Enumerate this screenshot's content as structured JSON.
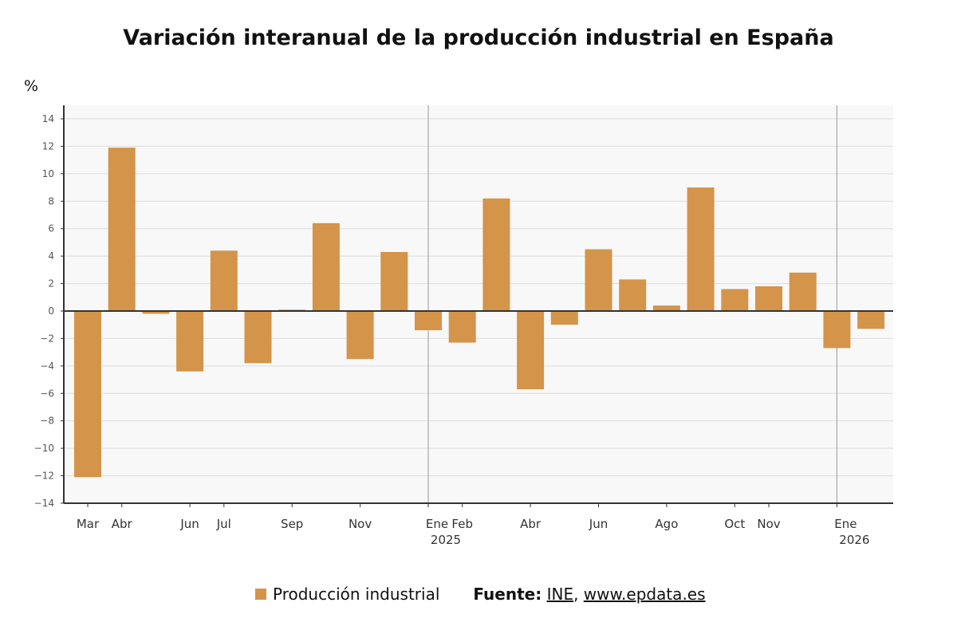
{
  "chart_data": {
    "type": "bar",
    "title": "Variación interanual de la producción industrial en España",
    "ylabel": "%",
    "ylim": [
      -14,
      14
    ],
    "yticks": [
      -14,
      -12,
      -10,
      -8,
      -6,
      -4,
      -2,
      0,
      2,
      4,
      6,
      8,
      10,
      12,
      14
    ],
    "grid": true,
    "legend_placement": "bottom",
    "bar_color": "#d4944a",
    "series": [
      {
        "name": "Producción industrial",
        "values": [
          -12.1,
          11.9,
          -0.2,
          -4.4,
          4.4,
          -3.8,
          0.1,
          6.4,
          -3.5,
          4.3,
          -1.4,
          -2.3,
          8.2,
          -5.7,
          -1.0,
          4.5,
          2.3,
          0.4,
          9.0,
          1.6,
          1.8,
          2.8,
          -2.7,
          -1.3
        ]
      }
    ],
    "x": [
      "2024-03",
      "2024-04",
      "2024-05",
      "2024-06",
      "2024-07",
      "2024-08",
      "2024-09",
      "2024-10",
      "2024-11",
      "2024-12",
      "2025-01",
      "2025-02",
      "2025-03",
      "2025-04",
      "2025-05",
      "2025-06",
      "2025-07",
      "2025-08",
      "2025-09",
      "2025-10",
      "2025-11",
      "2025-12",
      "2026-01",
      "2026-02"
    ],
    "xticks": [
      {
        "x": "2024-03",
        "label": "Mar"
      },
      {
        "x": "2024-04",
        "label": "Abr"
      },
      {
        "x": "2024-06",
        "label": "Jun"
      },
      {
        "x": "2024-07",
        "label": "Jul"
      },
      {
        "x": "2024-09",
        "label": "Sep"
      },
      {
        "x": "2024-11",
        "label": "Nov"
      },
      {
        "x": "2025-01",
        "label": "Ene",
        "year": "2025"
      },
      {
        "x": "2025-02",
        "label": "Feb"
      },
      {
        "x": "2025-04",
        "label": "Abr"
      },
      {
        "x": "2025-06",
        "label": "Jun"
      },
      {
        "x": "2025-08",
        "label": "Ago"
      },
      {
        "x": "2025-10",
        "label": "Oct"
      },
      {
        "x": "2025-11",
        "label": "Nov"
      },
      {
        "x": "2026-01",
        "label": "Ene",
        "year": "2026"
      }
    ],
    "year_lines": [
      "2025-01",
      "2026-01"
    ]
  },
  "legend": {
    "label": "Producción industrial"
  },
  "source": {
    "prefix": "Fuente:",
    "org": "INE",
    "sep": ",",
    "site": "www.epdata.es"
  }
}
